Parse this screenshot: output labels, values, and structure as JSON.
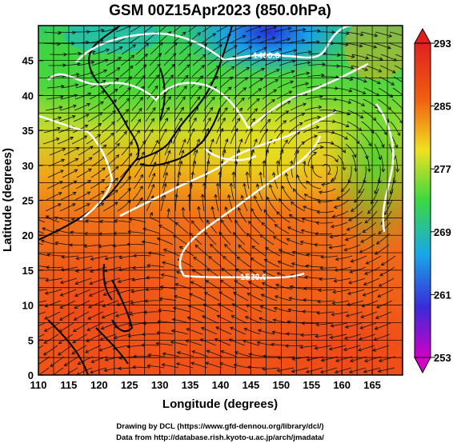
{
  "title": "GSM 00Z15Apr2023 (850.0hPa)",
  "x_axis": {
    "label": "Longitude (degrees)",
    "range": [
      110,
      170
    ],
    "ticks": [
      "110",
      "115",
      "120",
      "125",
      "130",
      "135",
      "140",
      "145",
      "150",
      "155",
      "160",
      "165"
    ]
  },
  "y_axis": {
    "label": "Latitude  (degrees)",
    "range": [
      0,
      50
    ],
    "ticks": [
      "0",
      "5",
      "10",
      "15",
      "20",
      "25",
      "30",
      "35",
      "40",
      "45"
    ]
  },
  "colorbar": {
    "ticks": [
      "253",
      "261",
      "269",
      "277",
      "285",
      "293"
    ],
    "min": 253,
    "max": 293,
    "colors": [
      "#d000c8",
      "#3a2bd8",
      "#18a8e8",
      "#3bd840",
      "#f0e020",
      "#f06010",
      "#e02020"
    ]
  },
  "contour_labels": [
    "1400.0",
    "1520.0"
  ],
  "credits": {
    "line1": "Drawing by DCL (https://www.gfd-dennou.org/library/dcl/)",
    "line2": "Data from http://database.rish.kyoto-u.ac.jp/arch/jmadata/"
  }
}
